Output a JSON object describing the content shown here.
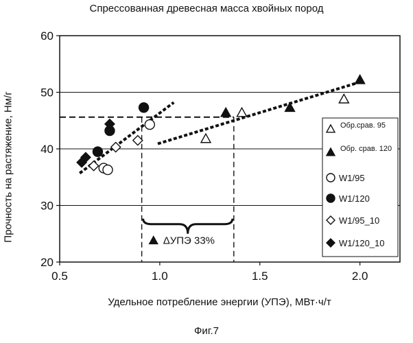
{
  "chart_data": {
    "type": "scatter",
    "title": "Спрессованная древесная масса хвойных пород",
    "xlabel": "Удельное потребление энергии (УПЭ), МВт·ч/т",
    "ylabel": "Прочность на растяжение, Нм/г",
    "xlim": [
      0.5,
      2.2
    ],
    "ylim": [
      20,
      60
    ],
    "xticks": [
      "0.5",
      "1.0",
      "1.5",
      "2.0"
    ],
    "yticks": [
      "20",
      "30",
      "40",
      "50",
      "60"
    ],
    "grid": "horizontal",
    "legend_position": "right",
    "series": [
      {
        "name": "Обр.срав. 95",
        "marker": "triangle-open",
        "points": [
          [
            1.23,
            41.8
          ],
          [
            1.41,
            46.4
          ],
          [
            1.92,
            48.8
          ]
        ]
      },
      {
        "name": "Обр. срав. 120",
        "marker": "triangle-filled",
        "points": [
          [
            1.33,
            46.4
          ],
          [
            1.65,
            47.3
          ],
          [
            2.0,
            52.2
          ]
        ]
      },
      {
        "name": "W1/95",
        "marker": "circle-open",
        "points": [
          [
            0.72,
            36.6
          ],
          [
            0.74,
            36.3
          ],
          [
            0.95,
            44.3
          ]
        ]
      },
      {
        "name": "W1/120",
        "marker": "circle-filled",
        "points": [
          [
            0.69,
            39.5
          ],
          [
            0.75,
            43.2
          ],
          [
            0.92,
            47.3
          ]
        ]
      },
      {
        "name": "W1/95_10",
        "marker": "diamond-open",
        "points": [
          [
            0.67,
            37.0
          ],
          [
            0.78,
            40.3
          ],
          [
            0.89,
            41.5
          ]
        ]
      },
      {
        "name": "W1/120_10",
        "marker": "diamond-filled",
        "points": [
          [
            0.61,
            37.6
          ],
          [
            0.63,
            38.5
          ],
          [
            0.75,
            44.4
          ]
        ]
      }
    ],
    "trendlines": [
      {
        "x": [
          0.6,
          1.07
        ],
        "y": [
          35.7,
          48.2
        ]
      },
      {
        "x": [
          0.99,
          2.0
        ],
        "y": [
          40.9,
          51.8
        ]
      }
    ],
    "reference_lines": {
      "y": 45.6,
      "x_start": 0.5,
      "x1": 0.91,
      "x2": 1.37,
      "y_bottom": 20
    },
    "annotation": "ΔУПЭ 33%",
    "annotation_position": {
      "x": 1.14,
      "y": 23.2
    }
  },
  "figure_caption": "Фиг.7"
}
